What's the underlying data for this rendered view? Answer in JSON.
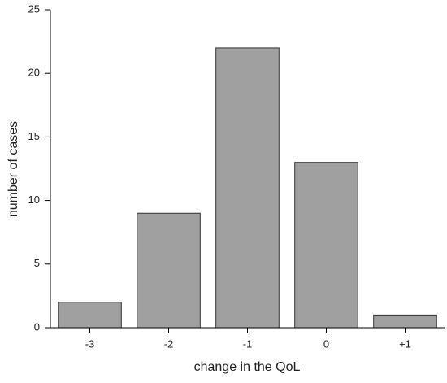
{
  "chart_data": {
    "type": "bar",
    "xlabel": "change in the QoL",
    "ylabel": "number of cases",
    "categories": [
      "-3",
      "-2",
      "-1",
      "0",
      "+1"
    ],
    "values": [
      2,
      9,
      22,
      13,
      1
    ],
    "color": "#a0a0a0",
    "ylim": [
      0,
      25
    ],
    "yticks": [
      0,
      5,
      10,
      15,
      20,
      25
    ]
  }
}
